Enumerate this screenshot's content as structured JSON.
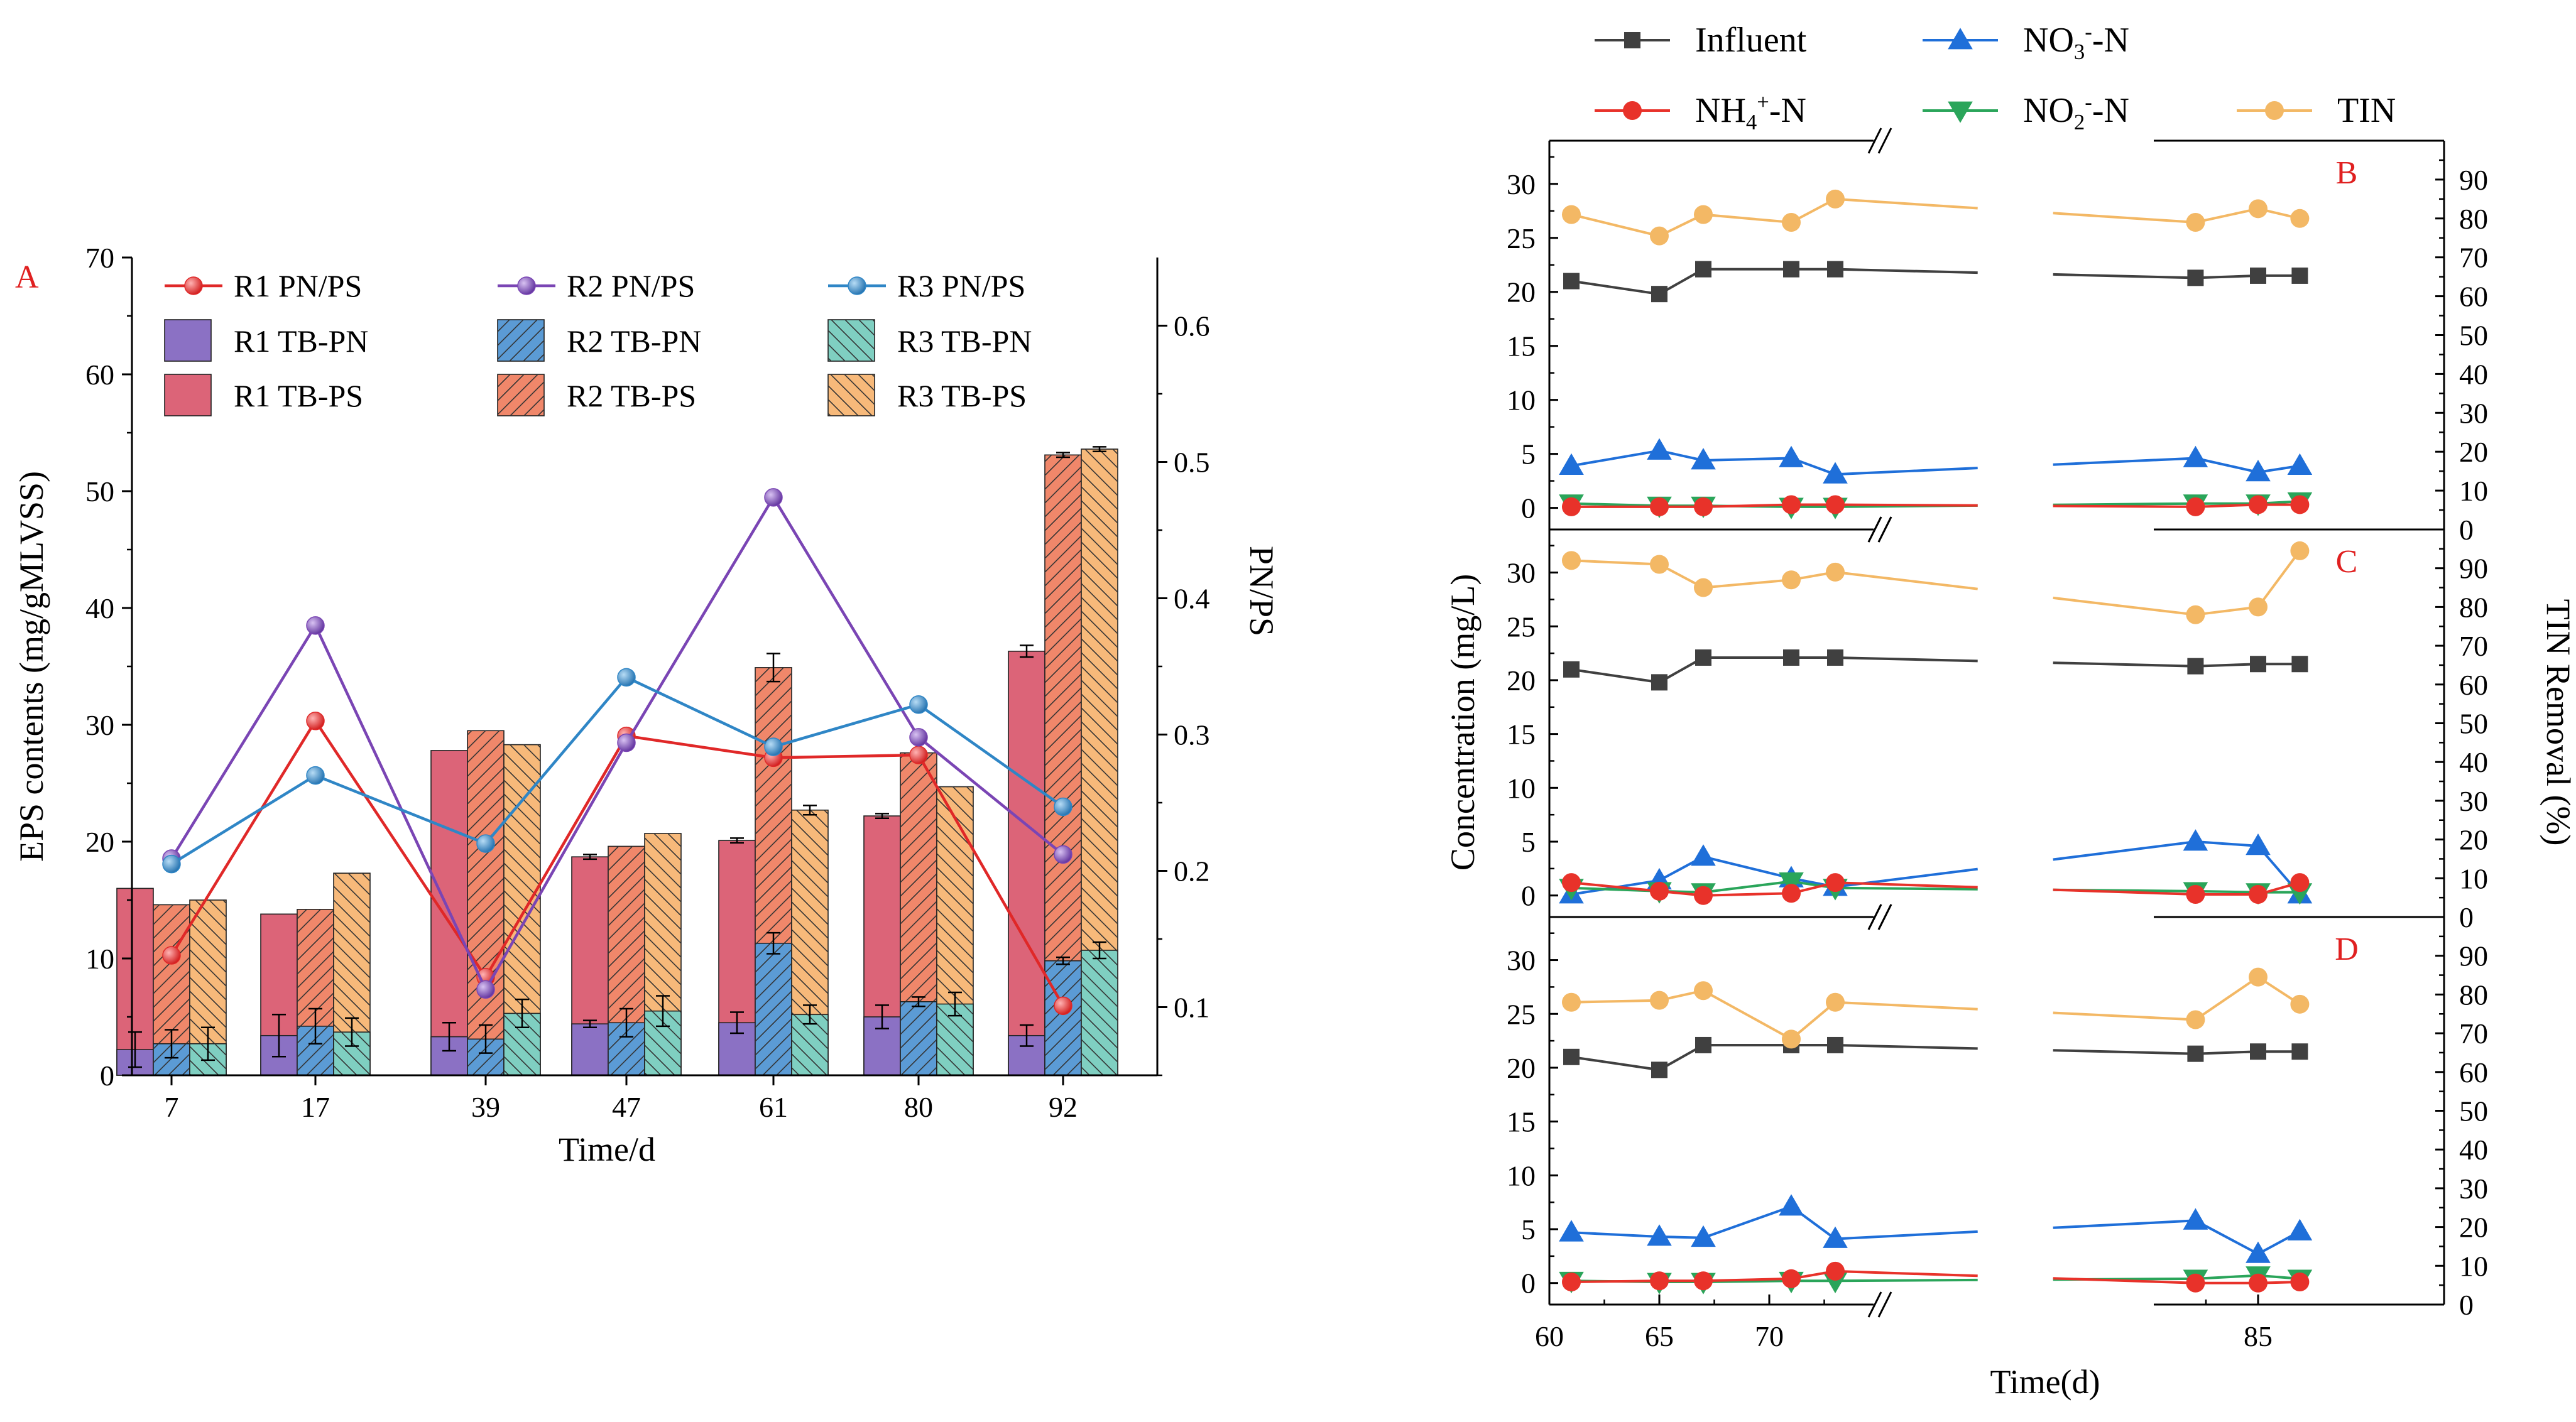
{
  "colors": {
    "r1_line": "#e02828",
    "r2_line": "#7a45b4",
    "r3_line": "#2f86c6",
    "r1_pn_bar": "#8b71c4",
    "r2_pn_bar": "#5b9bd5",
    "r3_pn_bar": "#7fcfc1",
    "r1_ps_bar": "#dc6478",
    "r2_ps_bar": "#f0876a",
    "r3_ps_bar": "#f7b97a",
    "influent": "#404040",
    "no3": "#1f6fd9",
    "nh4": "#e8322a",
    "no2": "#2aa55a",
    "tin": "#f3b865"
  },
  "chart_data": [
    {
      "panel": "A",
      "type": "bar",
      "categories": [
        "7",
        "17",
        "39",
        "47",
        "61",
        "80",
        "92"
      ],
      "xlabel": "Time/d",
      "ylabel": "EPS contents (mg/gMLVSS)",
      "ylim": [
        0,
        70
      ],
      "yticks": [
        "0",
        "10",
        "20",
        "30",
        "40",
        "50",
        "60",
        "70"
      ],
      "y2label": "PN/PS",
      "y2lim": [
        0.05,
        0.65
      ],
      "y2ticks": [
        "0.1",
        "0.2",
        "0.3",
        "0.4",
        "0.5",
        "0.6"
      ],
      "legend": [
        "R1 PN/PS",
        "R2 PN/PS",
        "R3 PN/PS",
        "R1 TB-PN",
        "R2 TB-PN",
        "R3 TB-PN",
        "R1 TB-PS",
        "R2 TB-PS",
        "R3 TB-PS"
      ],
      "series": [
        {
          "name": "R1 TB-PN",
          "values": [
            2.2,
            3.4,
            3.3,
            4.4,
            4.5,
            5.0,
            3.4
          ],
          "errors": [
            1.5,
            1.8,
            1.2,
            0.3,
            0.9,
            1.0,
            0.9
          ]
        },
        {
          "name": "R2 TB-PN",
          "values": [
            2.7,
            4.2,
            3.1,
            4.5,
            11.3,
            6.3,
            9.8
          ],
          "errors": [
            1.2,
            1.5,
            1.2,
            1.2,
            0.9,
            0.4,
            0.3
          ]
        },
        {
          "name": "R3 TB-PN",
          "values": [
            2.7,
            3.7,
            5.3,
            5.5,
            5.2,
            6.1,
            10.7
          ],
          "errors": [
            1.4,
            1.2,
            1.2,
            1.3,
            0.8,
            1.0,
            0.7
          ]
        },
        {
          "name": "R1 TB-PS",
          "values": [
            16.0,
            13.8,
            27.8,
            18.7,
            20.1,
            22.2,
            36.3
          ],
          "errors": [
            0,
            0,
            0,
            0.2,
            0.2,
            0.2,
            0.5
          ]
        },
        {
          "name": "R2 TB-PS",
          "values": [
            14.6,
            14.2,
            29.5,
            19.6,
            34.9,
            27.6,
            53.1
          ],
          "errors": [
            0,
            0,
            0,
            0,
            1.2,
            0,
            0.2
          ]
        },
        {
          "name": "R3 TB-PS",
          "values": [
            15.0,
            17.3,
            28.3,
            20.7,
            22.7,
            24.7,
            53.6
          ],
          "errors": [
            0,
            0,
            0,
            0,
            0.4,
            0,
            0.2
          ]
        }
      ],
      "ratios": [
        {
          "name": "R1 PN/PS",
          "values": [
            0.138,
            0.31,
            0.122,
            0.299,
            0.283,
            0.285,
            0.101
          ]
        },
        {
          "name": "R2 PN/PS",
          "values": [
            0.209,
            0.38,
            0.113,
            0.294,
            0.474,
            0.298,
            0.212
          ]
        },
        {
          "name": "R3 PN/PS",
          "values": [
            0.205,
            0.27,
            0.22,
            0.342,
            0.291,
            0.322,
            0.247
          ]
        }
      ]
    },
    {
      "type": "line",
      "legend": [
        "Influent",
        "NO3-N",
        "NH4+-N",
        "NO2-N",
        "TIN"
      ],
      "ylabel": "Concentration (mg/L)",
      "y2label": "TIN Removal (%)",
      "xlabel": "Time(d)",
      "x": [
        61,
        65,
        67,
        71,
        73,
        82,
        85,
        87
      ],
      "xticks": [
        "60",
        "65",
        "70",
        "85"
      ],
      "xbreak": [
        75,
        80
      ],
      "ylim": [
        -2,
        34
      ],
      "yticks": [
        "0",
        "5",
        "10",
        "15",
        "20",
        "25",
        "30"
      ],
      "y2lim": [
        0,
        100
      ],
      "y2ticks": [
        "0",
        "10",
        "20",
        "30",
        "40",
        "50",
        "60",
        "70",
        "80",
        "90"
      ],
      "panels": [
        {
          "label": "B",
          "influent": [
            21.0,
            19.8,
            22.1,
            22.1,
            22.1,
            21.3,
            21.5,
            21.5
          ],
          "no3": [
            3.9,
            5.3,
            4.4,
            4.6,
            3.1,
            4.6,
            3.3,
            3.9
          ],
          "nh4": [
            0.1,
            0.1,
            0.1,
            0.3,
            0.3,
            0.1,
            0.3,
            0.3
          ],
          "no2": [
            0.4,
            0.2,
            0.2,
            0.1,
            0.1,
            0.4,
            0.4,
            0.6
          ],
          "tin": [
            81,
            75.5,
            81,
            79,
            85,
            79,
            82.5,
            80
          ]
        },
        {
          "label": "C",
          "influent": [
            21.0,
            19.8,
            22.1,
            22.1,
            22.1,
            21.3,
            21.5,
            21.5
          ],
          "no3": [
            0.1,
            1.4,
            3.6,
            1.6,
            0.8,
            5.0,
            4.6,
            0.1
          ],
          "nh4": [
            1.2,
            0.4,
            0.0,
            0.2,
            1.2,
            0.1,
            0.1,
            1.2
          ],
          "no2": [
            0.7,
            0.4,
            0.3,
            1.3,
            0.7,
            0.4,
            0.3,
            0.3
          ],
          "tin": [
            92,
            91,
            85,
            87,
            89,
            78,
            80,
            94.5
          ]
        },
        {
          "label": "D",
          "influent": [
            21.0,
            19.8,
            22.1,
            22.1,
            22.1,
            21.3,
            21.5,
            21.5
          ],
          "no3": [
            4.7,
            4.3,
            4.2,
            7.1,
            4.1,
            5.8,
            2.7,
            4.8
          ],
          "nh4": [
            0.1,
            0.2,
            0.2,
            0.4,
            1.1,
            0.0,
            0.0,
            0.1
          ],
          "no2": [
            0.2,
            0.1,
            0.1,
            0.2,
            0.2,
            0.4,
            0.7,
            0.4
          ],
          "tin": [
            78,
            78.5,
            81,
            68.5,
            78,
            73.5,
            84.5,
            77.5
          ]
        }
      ]
    }
  ]
}
